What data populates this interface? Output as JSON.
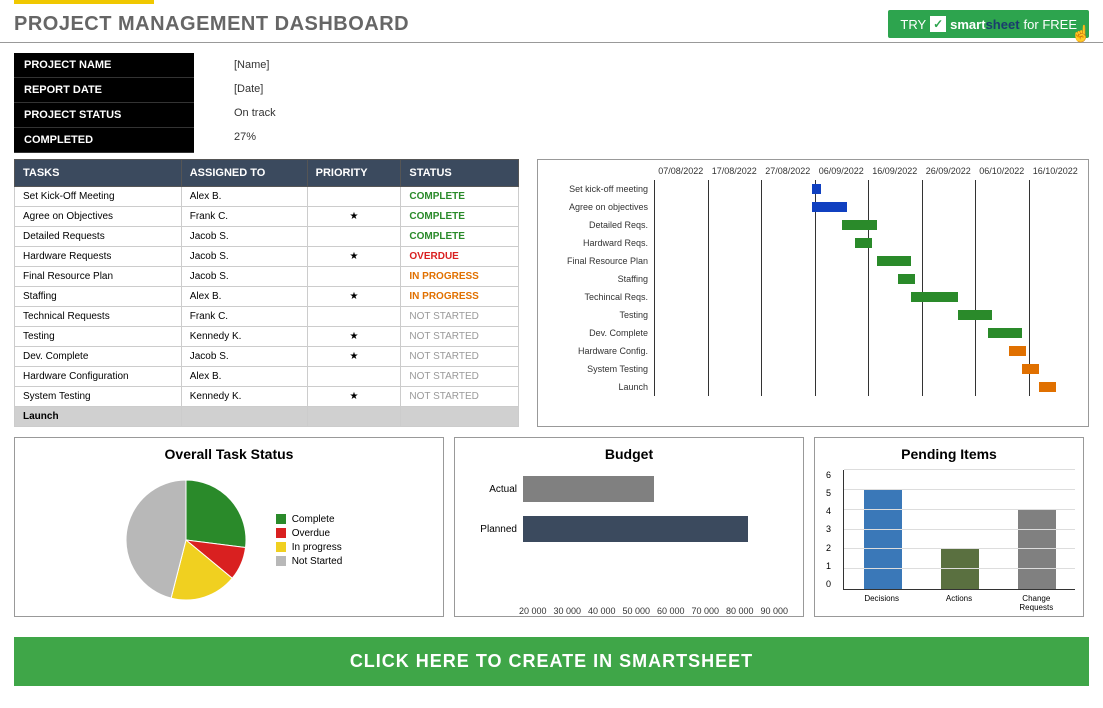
{
  "header": {
    "title": "PROJECT MANAGEMENT DASHBOARD",
    "badge_try": "TRY",
    "badge_brand1": "smart",
    "badge_brand2": "sheet",
    "badge_for": "for FREE",
    "badge_bg": "#2da44e"
  },
  "info": {
    "labels": [
      "PROJECT NAME",
      "REPORT DATE",
      "PROJECT STATUS",
      "COMPLETED"
    ],
    "values": [
      "[Name]",
      "[Date]",
      "On track",
      "27%"
    ]
  },
  "tasks_table": {
    "columns": [
      "TASKS",
      "ASSIGNED TO",
      "PRIORITY",
      "STATUS"
    ],
    "rows": [
      {
        "task": "Set Kick-Off Meeting",
        "assigned": "Alex B.",
        "priority": "",
        "status": "COMPLETE",
        "status_class": "status-complete"
      },
      {
        "task": "Agree on Objectives",
        "assigned": "Frank C.",
        "priority": "★",
        "status": "COMPLETE",
        "status_class": "status-complete"
      },
      {
        "task": "Detailed Requests",
        "assigned": "Jacob S.",
        "priority": "",
        "status": "COMPLETE",
        "status_class": "status-complete"
      },
      {
        "task": "Hardware Requests",
        "assigned": "Jacob S.",
        "priority": "★",
        "status": "OVERDUE",
        "status_class": "status-overdue"
      },
      {
        "task": "Final Resource Plan",
        "assigned": "Jacob S.",
        "priority": "",
        "status": "IN PROGRESS",
        "status_class": "status-inprogress"
      },
      {
        "task": "Staffing",
        "assigned": "Alex B.",
        "priority": "★",
        "status": "IN PROGRESS",
        "status_class": "status-inprogress"
      },
      {
        "task": "Technical Requests",
        "assigned": "Frank C.",
        "priority": "",
        "status": "NOT STARTED",
        "status_class": "status-notstarted"
      },
      {
        "task": "Testing",
        "assigned": "Kennedy K.",
        "priority": "★",
        "status": "NOT STARTED",
        "status_class": "status-notstarted"
      },
      {
        "task": "Dev. Complete",
        "assigned": "Jacob S.",
        "priority": "★",
        "status": "NOT STARTED",
        "status_class": "status-notstarted"
      },
      {
        "task": "Hardware Configuration",
        "assigned": "Alex B.",
        "priority": "",
        "status": "NOT STARTED",
        "status_class": "status-notstarted"
      },
      {
        "task": "System Testing",
        "assigned": "Kennedy K.",
        "priority": "★",
        "status": "NOT STARTED",
        "status_class": "status-notstarted"
      },
      {
        "task": "Launch",
        "assigned": "",
        "priority": "",
        "status": "",
        "status_class": "",
        "launch": true
      }
    ]
  },
  "gantt": {
    "dates": [
      "07/08/2022",
      "17/08/2022",
      "27/08/2022",
      "06/09/2022",
      "16/09/2022",
      "26/09/2022",
      "06/10/2022",
      "16/10/2022"
    ],
    "rows": [
      {
        "label": "Set kick-off meeting",
        "start": 37,
        "width": 2,
        "color": "#1040c0"
      },
      {
        "label": "Agree on objectives",
        "start": 37,
        "width": 8,
        "color": "#1040c0"
      },
      {
        "label": "Detailed Reqs.",
        "start": 44,
        "width": 8,
        "color": "#2a8a2a"
      },
      {
        "label": "Hardward Reqs.",
        "start": 47,
        "width": 4,
        "color": "#2a8a2a"
      },
      {
        "label": "Final Resource Plan",
        "start": 52,
        "width": 8,
        "color": "#2a8a2a"
      },
      {
        "label": "Staffing",
        "start": 57,
        "width": 4,
        "color": "#2a8a2a"
      },
      {
        "label": "Techincal Reqs.",
        "start": 60,
        "width": 11,
        "color": "#2a8a2a"
      },
      {
        "label": "Testing",
        "start": 71,
        "width": 8,
        "color": "#2a8a2a"
      },
      {
        "label": "Dev. Complete",
        "start": 78,
        "width": 8,
        "color": "#2a8a2a"
      },
      {
        "label": "Hardware Config.",
        "start": 83,
        "width": 4,
        "color": "#e07000"
      },
      {
        "label": "System Testing",
        "start": 86,
        "width": 4,
        "color": "#e07000"
      },
      {
        "label": "Launch",
        "start": 90,
        "width": 4,
        "color": "#e07000"
      }
    ],
    "grid_positions": [
      0,
      12.5,
      25,
      37.5,
      50,
      62.5,
      75,
      87.5
    ]
  },
  "pie_chart": {
    "title": "Overall Task Status",
    "slices": [
      {
        "label": "Complete",
        "value": 27,
        "color": "#2a8a2a"
      },
      {
        "label": "Overdue",
        "value": 9,
        "color": "#d92020"
      },
      {
        "label": "In progress",
        "value": 18,
        "color": "#f0d020"
      },
      {
        "label": "Not Started",
        "value": 46,
        "color": "#b8b8b8"
      }
    ]
  },
  "budget_chart": {
    "title": "Budget",
    "bars": [
      {
        "label": "Actual",
        "value": 55000,
        "color": "#808080"
      },
      {
        "label": "Planned",
        "value": 80000,
        "color": "#3b4a5e"
      }
    ],
    "xmin": 20000,
    "xmax": 90000,
    "xticks": [
      "20 000",
      "30 000",
      "40 000",
      "50 000",
      "60 000",
      "70 000",
      "80 000",
      "90 000"
    ]
  },
  "pending_chart": {
    "title": "Pending Items",
    "ymax": 6,
    "yticks": [
      0,
      1,
      2,
      3,
      4,
      5,
      6
    ],
    "bars": [
      {
        "label": "Decisions",
        "value": 5,
        "color": "#3a78b8"
      },
      {
        "label": "Actions",
        "value": 2,
        "color": "#5a7040"
      },
      {
        "label": "Change Requests",
        "value": 4,
        "color": "#808080"
      }
    ]
  },
  "cta": {
    "text": "CLICK HERE TO CREATE IN SMARTSHEET",
    "bg": "#3fa648"
  }
}
